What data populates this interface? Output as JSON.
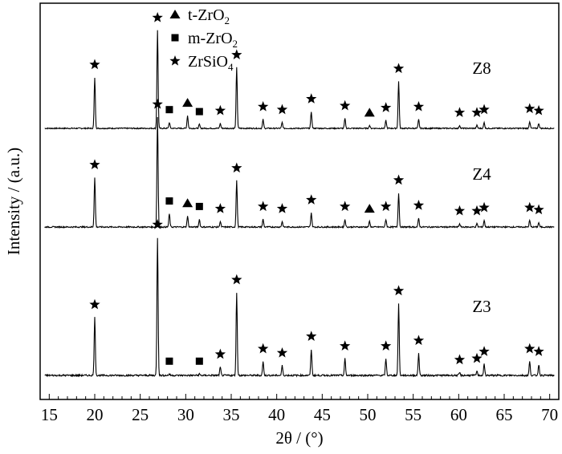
{
  "chart_data": {
    "type": "line",
    "xlabel": "2θ / (°)",
    "ylabel": "Intensity / (a.u.)",
    "xlim": [
      14,
      71
    ],
    "x_ticks": [
      "15",
      "20",
      "25",
      "30",
      "35",
      "40",
      "45",
      "50",
      "55",
      "60",
      "65",
      "70"
    ],
    "legend": [
      {
        "marker": "triangle",
        "label": "t-ZrO",
        "sub": "2"
      },
      {
        "marker": "square",
        "label": "m-ZrO",
        "sub": "2"
      },
      {
        "marker": "star",
        "label": "ZrSiO",
        "sub": "4"
      }
    ],
    "series": [
      {
        "name": "Z8",
        "peaks": [
          {
            "x": 20.0,
            "h": 0.52,
            "m": "star"
          },
          {
            "x": 26.9,
            "h": 1.0,
            "m": "star"
          },
          {
            "x": 28.2,
            "h": 0.06,
            "m": "square"
          },
          {
            "x": 30.2,
            "h": 0.13,
            "m": "triangle"
          },
          {
            "x": 31.5,
            "h": 0.04,
            "m": "square"
          },
          {
            "x": 33.8,
            "h": 0.05,
            "m": "star"
          },
          {
            "x": 35.6,
            "h": 0.62,
            "m": "star"
          },
          {
            "x": 38.5,
            "h": 0.09,
            "m": "star"
          },
          {
            "x": 40.6,
            "h": 0.06,
            "m": "star"
          },
          {
            "x": 43.8,
            "h": 0.17,
            "m": "star"
          },
          {
            "x": 47.5,
            "h": 0.1,
            "m": "star"
          },
          {
            "x": 50.2,
            "h": 0.03,
            "m": "triangle"
          },
          {
            "x": 52.0,
            "h": 0.08,
            "m": "star"
          },
          {
            "x": 53.4,
            "h": 0.48,
            "m": "star"
          },
          {
            "x": 55.6,
            "h": 0.09,
            "m": "star"
          },
          {
            "x": 60.1,
            "h": 0.03,
            "m": "star"
          },
          {
            "x": 62.0,
            "h": 0.03,
            "m": "star"
          },
          {
            "x": 62.8,
            "h": 0.06,
            "m": "star"
          },
          {
            "x": 67.8,
            "h": 0.07,
            "m": "star"
          },
          {
            "x": 68.8,
            "h": 0.05,
            "m": "star"
          }
        ]
      },
      {
        "name": "Z4",
        "peaks": [
          {
            "x": 20.0,
            "h": 0.45,
            "m": "star"
          },
          {
            "x": 26.9,
            "h": 1.0,
            "m": "star"
          },
          {
            "x": 28.2,
            "h": 0.12,
            "m": "square"
          },
          {
            "x": 30.2,
            "h": 0.1,
            "m": "triangle"
          },
          {
            "x": 31.5,
            "h": 0.07,
            "m": "square"
          },
          {
            "x": 33.8,
            "h": 0.05,
            "m": "star"
          },
          {
            "x": 35.6,
            "h": 0.42,
            "m": "star"
          },
          {
            "x": 38.5,
            "h": 0.07,
            "m": "star"
          },
          {
            "x": 40.6,
            "h": 0.05,
            "m": "star"
          },
          {
            "x": 43.8,
            "h": 0.13,
            "m": "star"
          },
          {
            "x": 47.5,
            "h": 0.07,
            "m": "star"
          },
          {
            "x": 50.2,
            "h": 0.05,
            "m": "triangle"
          },
          {
            "x": 52.0,
            "h": 0.07,
            "m": "star"
          },
          {
            "x": 53.4,
            "h": 0.31,
            "m": "star"
          },
          {
            "x": 55.6,
            "h": 0.08,
            "m": "star"
          },
          {
            "x": 60.1,
            "h": 0.03,
            "m": "star"
          },
          {
            "x": 62.0,
            "h": 0.03,
            "m": "star"
          },
          {
            "x": 62.8,
            "h": 0.06,
            "m": "star"
          },
          {
            "x": 67.8,
            "h": 0.06,
            "m": "star"
          },
          {
            "x": 68.8,
            "h": 0.04,
            "m": "star"
          }
        ]
      },
      {
        "name": "Z3",
        "peaks": [
          {
            "x": 20.0,
            "h": 0.42,
            "m": "star"
          },
          {
            "x": 26.9,
            "h": 1.0,
            "m": "star"
          },
          {
            "x": 28.2,
            "h": 0.01,
            "m": "square"
          },
          {
            "x": 31.5,
            "h": 0.01,
            "m": "square"
          },
          {
            "x": 33.8,
            "h": 0.06,
            "m": "star"
          },
          {
            "x": 35.6,
            "h": 0.6,
            "m": "star"
          },
          {
            "x": 38.5,
            "h": 0.1,
            "m": "star"
          },
          {
            "x": 40.6,
            "h": 0.07,
            "m": "star"
          },
          {
            "x": 43.8,
            "h": 0.19,
            "m": "star"
          },
          {
            "x": 47.5,
            "h": 0.12,
            "m": "star"
          },
          {
            "x": 52.0,
            "h": 0.12,
            "m": "star"
          },
          {
            "x": 53.4,
            "h": 0.52,
            "m": "star"
          },
          {
            "x": 55.6,
            "h": 0.16,
            "m": "star"
          },
          {
            "x": 60.1,
            "h": 0.02,
            "m": "star"
          },
          {
            "x": 62.0,
            "h": 0.03,
            "m": "star"
          },
          {
            "x": 62.8,
            "h": 0.08,
            "m": "star"
          },
          {
            "x": 67.8,
            "h": 0.1,
            "m": "star"
          },
          {
            "x": 68.8,
            "h": 0.08,
            "m": "star"
          }
        ]
      }
    ]
  }
}
